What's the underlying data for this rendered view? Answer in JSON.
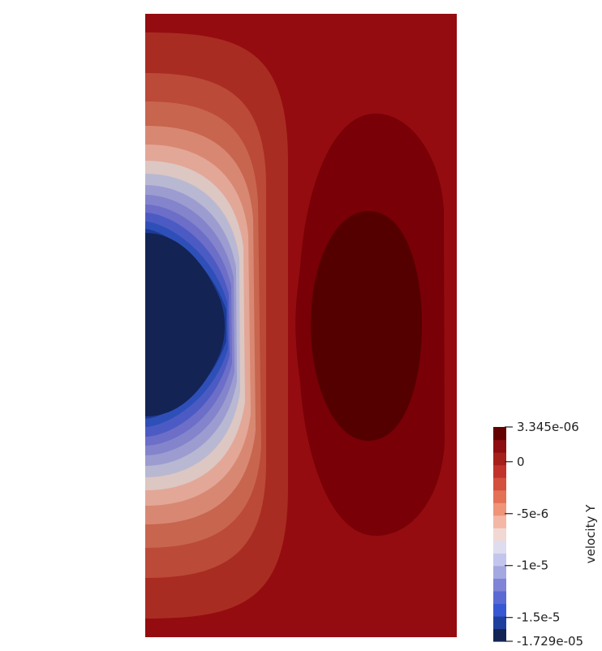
{
  "chart_data": {
    "type": "heatmap",
    "plot": "filled contour",
    "field": "velocity Y",
    "range": [
      -1.729e-05,
      3.345e-06
    ],
    "colormap": "Cool to Warm (discretized)",
    "colormap_stops": [
      "#132354",
      "#1f3f9d",
      "#3857d2",
      "#5b69d2",
      "#7f84d6",
      "#a3a8e0",
      "#c3c5ec",
      "#dfdcef",
      "#f1d8d3",
      "#f4b7a6",
      "#ef9478",
      "#e47055",
      "#d4503e",
      "#c2322c",
      "#a71f1b",
      "#8e0d10",
      "#640000"
    ],
    "colorbar": {
      "title": "velocity Y",
      "ticks": [
        {
          "value": 3.345e-06,
          "label": "3.345e-06"
        },
        {
          "value": 0,
          "label": "0"
        },
        {
          "value": -5e-06,
          "label": "-5e-6"
        },
        {
          "value": -1e-05,
          "label": "-1e-5"
        },
        {
          "value": -1.5e-05,
          "label": "-1.5e-5"
        },
        {
          "value": -1.729e-05,
          "label": "-1.729e-05"
        }
      ],
      "placement": "bottom-right"
    },
    "features": [
      {
        "name": "negative-core",
        "location": "left-center",
        "value": -1.729e-05
      },
      {
        "name": "positive-core",
        "location": "right-center",
        "value": 3.345e-06
      }
    ]
  }
}
